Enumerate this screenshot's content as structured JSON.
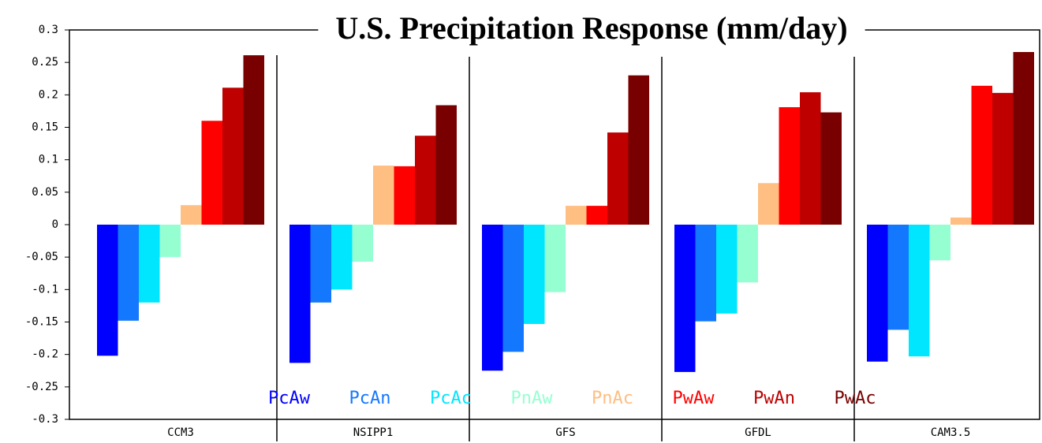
{
  "chart_data": {
    "type": "bar",
    "title": "U.S. Precipitation Response (mm/day)",
    "categories": [
      "CCM3",
      "NSIPP1",
      "GFS",
      "GFDL",
      "CAM3.5"
    ],
    "series": [
      {
        "name": "PcAw",
        "color": "#0000ff",
        "values": [
          -0.202,
          -0.213,
          -0.225,
          -0.227,
          -0.211
        ]
      },
      {
        "name": "PcAn",
        "color": "#1478ff",
        "values": [
          -0.148,
          -0.12,
          -0.196,
          -0.149,
          -0.162
        ]
      },
      {
        "name": "PcAc",
        "color": "#00e6ff",
        "values": [
          -0.12,
          -0.1,
          -0.153,
          -0.137,
          -0.203
        ]
      },
      {
        "name": "PnAw",
        "color": "#96ffd2",
        "values": [
          -0.05,
          -0.057,
          -0.104,
          -0.089,
          -0.055
        ]
      },
      {
        "name": "PnAc",
        "color": "#ffbe82",
        "values": [
          0.03,
          0.091,
          0.029,
          0.064,
          0.011
        ]
      },
      {
        "name": "PwAw",
        "color": "#ff0000",
        "values": [
          0.16,
          0.09,
          0.029,
          0.181,
          0.214
        ]
      },
      {
        "name": "PwAn",
        "color": "#be0000",
        "values": [
          0.211,
          0.137,
          0.142,
          0.204,
          0.203
        ]
      },
      {
        "name": "PwAc",
        "color": "#780000",
        "values": [
          0.261,
          0.184,
          0.23,
          0.173,
          0.266
        ]
      }
    ],
    "ylim": [
      -0.3,
      0.3
    ],
    "yticks": [
      -0.3,
      -0.25,
      -0.2,
      -0.15,
      -0.1,
      -0.05,
      0,
      0.05,
      0.1,
      0.15,
      0.2,
      0.25,
      0.3
    ],
    "grid": false
  }
}
